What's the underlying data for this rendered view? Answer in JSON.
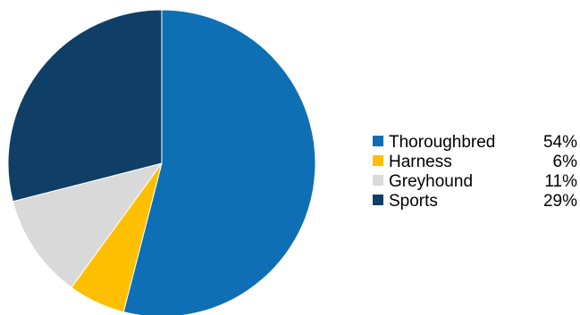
{
  "chart_data": {
    "type": "pie",
    "title": "",
    "start_angle_deg": 0,
    "direction": "clockwise",
    "legend_position": "right",
    "slices": [
      {
        "label": "Thoroughbred",
        "value": 54,
        "value_label": "54%",
        "color": "#0E6FB5"
      },
      {
        "label": "Harness",
        "value": 6,
        "value_label": "6%",
        "color": "#FDBF00"
      },
      {
        "label": "Greyhound",
        "value": 11,
        "value_label": "11%",
        "color": "#D9D9D9"
      },
      {
        "label": "Sports",
        "value": 29,
        "value_label": "29%",
        "color": "#0F3F66"
      }
    ]
  }
}
